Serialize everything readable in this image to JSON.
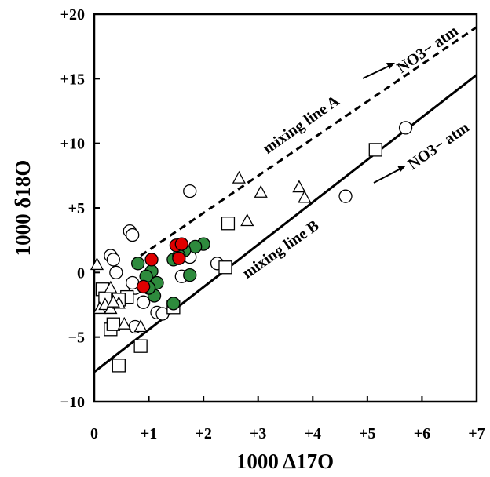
{
  "chart_data": {
    "type": "scatter",
    "title": "",
    "xlabel": "1000 Δ17O",
    "ylabel": "1000 δ18O",
    "xlim": [
      0,
      7
    ],
    "ylim": [
      -10,
      20
    ],
    "x_ticks": [
      "0",
      "+1",
      "+2",
      "+3",
      "+4",
      "+5",
      "+6",
      "+7"
    ],
    "y_ticks": [
      "−10",
      "−5",
      "0",
      "+5",
      "+10",
      "+15",
      "+20"
    ],
    "grid": false,
    "legend": "none",
    "annotations": {
      "line_a_label": "mixing line A",
      "line_b_label": "mixing line B",
      "endmember_a": "NO3− atm",
      "endmember_b": "NO3− atm"
    },
    "lines": [
      {
        "style": "dashed",
        "x": [
          0.85,
          7
        ],
        "y": [
          1.3,
          19
        ]
      },
      {
        "style": "solid",
        "x": [
          0,
          7
        ],
        "y": [
          -7.7,
          15.3
        ]
      }
    ],
    "series": [
      {
        "marker": "circle",
        "fill": "#ffffff",
        "x": [
          5.7,
          4.6,
          1.75,
          0.65,
          0.7,
          0.3,
          0.35,
          0.4,
          2.25,
          1.75,
          1.6,
          1.05,
          0.75,
          0.7,
          0.9,
          0.75,
          1.15,
          1.25
        ],
        "y": [
          11.2,
          5.9,
          6.3,
          3.2,
          2.9,
          1.3,
          1.0,
          0.0,
          0.7,
          1.2,
          -0.3,
          -1.0,
          -1.2,
          -0.8,
          -2.3,
          -4.2,
          -3.1,
          -3.2
        ]
      },
      {
        "marker": "square",
        "fill": "#ffffff",
        "x": [
          5.15,
          2.45,
          2.4,
          0.15,
          0.2,
          0.6,
          0.45,
          0.3,
          0.35,
          1.45,
          0.85,
          0.45
        ],
        "y": [
          9.5,
          3.8,
          0.4,
          -1.3,
          -2.0,
          -1.9,
          -2.1,
          -4.4,
          -4.0,
          -2.7,
          -5.7,
          -7.2
        ]
      },
      {
        "marker": "triangle",
        "fill": "#ffffff",
        "x": [
          2.65,
          3.05,
          2.8,
          3.75,
          3.85,
          0.05,
          0.3,
          0.1,
          0.2,
          0.3,
          0.45,
          0.35,
          0.55,
          0.85
        ],
        "y": [
          7.3,
          6.2,
          4.0,
          6.6,
          5.8,
          0.6,
          -1.2,
          -2.8,
          -2.5,
          -2.8,
          -2.4,
          -2.3,
          -4.0,
          -4.2
        ]
      },
      {
        "marker": "circle",
        "fill": "#2e8b3d",
        "x": [
          2.0,
          1.85,
          1.65,
          1.45,
          1.55,
          1.75,
          0.8,
          1.05,
          0.95,
          1.15,
          1.1,
          1.0,
          1.45
        ],
        "y": [
          2.2,
          2.0,
          1.7,
          1.0,
          1.3,
          -0.2,
          0.7,
          0.1,
          -0.3,
          -0.8,
          -1.8,
          -1.2,
          -2.4
        ]
      },
      {
        "marker": "circle",
        "fill": "#e00000",
        "x": [
          1.5,
          1.6,
          1.55,
          1.05,
          0.9
        ],
        "y": [
          2.1,
          2.2,
          1.1,
          1.0,
          -1.1
        ]
      }
    ]
  }
}
